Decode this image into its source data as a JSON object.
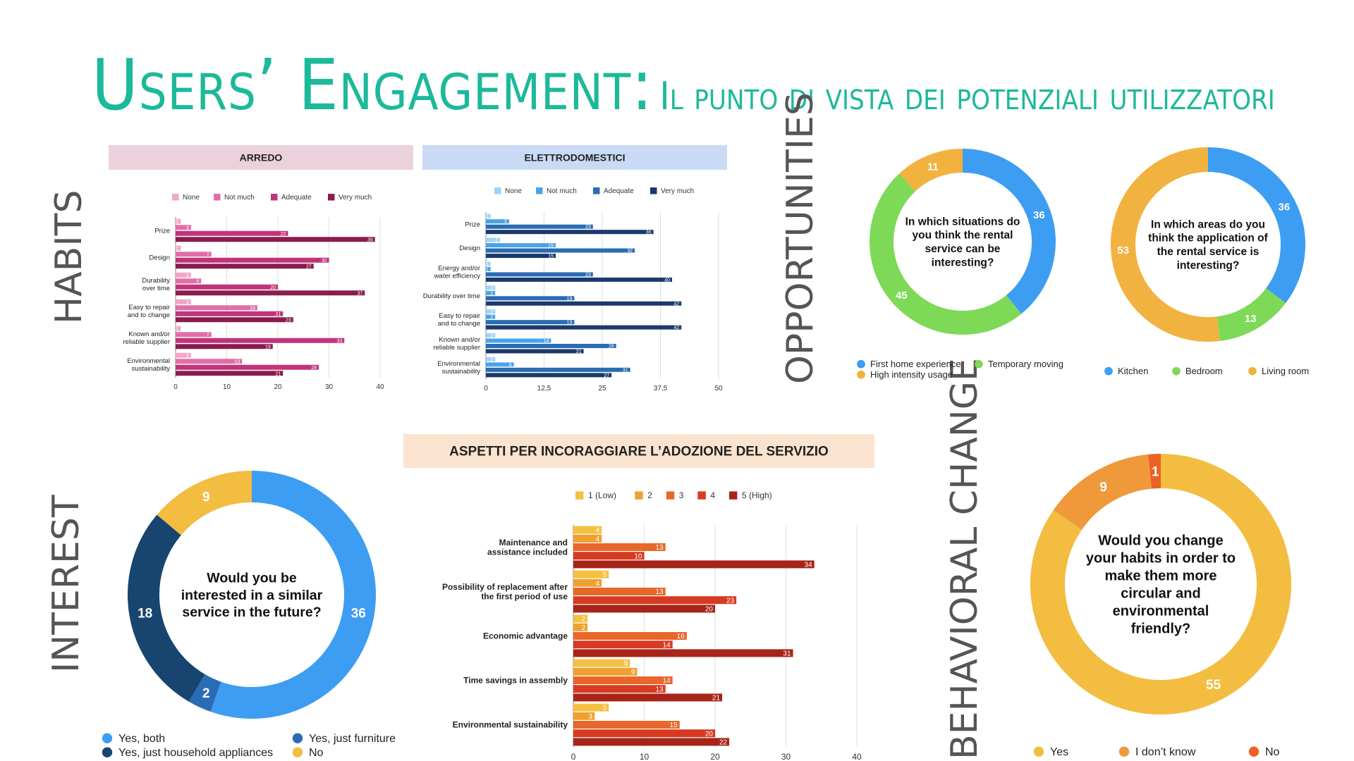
{
  "header": {
    "title_main": "Users’ Engagement:",
    "title_sub": "Il punto di vista dei potenziali utilizzatori"
  },
  "sections": {
    "habits": "HABITS",
    "opportunities": "OPPORTUNITIES",
    "interest": "INTEREST",
    "behavioral": "BEHAVIORAL CHANGE"
  },
  "chart_data": [
    {
      "id": "arredo",
      "type": "bar",
      "orientation": "horizontal",
      "title": "ARREDO",
      "title_bg": "#ebd1dc",
      "categories": [
        "Prize",
        "Design",
        "Durability over time",
        "Easy to repair and to change",
        "Known and/or reliable supplier",
        "Environmental sustainability"
      ],
      "category_lines": [
        [
          "Prize"
        ],
        [
          "Design"
        ],
        [
          "Durability",
          "over time"
        ],
        [
          "Easy to repair",
          "and to change"
        ],
        [
          "Known and/or",
          "reliable supplier"
        ],
        [
          "Environmental",
          "sustainability"
        ]
      ],
      "series": [
        {
          "name": "None",
          "color": "#f2a6c8",
          "values": [
            1,
            1,
            3,
            3,
            1,
            3
          ]
        },
        {
          "name": "Not much",
          "color": "#e06fa6",
          "values": [
            3,
            7,
            5,
            16,
            7,
            13
          ]
        },
        {
          "name": "Adequate",
          "color": "#c2337a",
          "values": [
            22,
            30,
            20,
            21,
            33,
            28
          ]
        },
        {
          "name": "Very much",
          "color": "#8a1c4e",
          "values": [
            39,
            27,
            37,
            23,
            19,
            21
          ]
        }
      ],
      "xlim": [
        0,
        40
      ],
      "xticks": [
        "0",
        "10",
        "20",
        "30",
        "40"
      ],
      "xtick_values": [
        0,
        10,
        20,
        30,
        40
      ],
      "grid": true,
      "legend": "top"
    },
    {
      "id": "elettrodomestici",
      "type": "bar",
      "orientation": "horizontal",
      "title": "ELETTRODOMESTICI",
      "title_bg": "#c9daf6",
      "categories": [
        "Prize",
        "Design",
        "Energy and/or water efficiency",
        "Durability over time",
        "Easy to repair and to change",
        "Known and/or reliable supplier",
        "Environmental sustainability"
      ],
      "category_lines": [
        [
          "Prize"
        ],
        [
          "Design"
        ],
        [
          "Energy and/or",
          "water efficiency"
        ],
        [
          "Durability over time"
        ],
        [
          "Easy to repair",
          "and to change"
        ],
        [
          "Known and/or",
          "reliable supplier"
        ],
        [
          "Environmental",
          "sustainability"
        ]
      ],
      "series": [
        {
          "name": "None",
          "color": "#9fd2f5",
          "values": [
            1,
            3,
            1,
            2,
            2,
            2,
            2
          ]
        },
        {
          "name": "Not much",
          "color": "#4aa3e8",
          "values": [
            5,
            15,
            1,
            2,
            2,
            14,
            6
          ]
        },
        {
          "name": "Adequate",
          "color": "#2a6cb4",
          "values": [
            23,
            32,
            23,
            19,
            19,
            28,
            31
          ]
        },
        {
          "name": "Very much",
          "color": "#1a3a6b",
          "values": [
            36,
            15,
            40,
            42,
            42,
            21,
            27
          ]
        }
      ],
      "xlim": [
        0,
        50
      ],
      "xticks": [
        "0",
        "12,5",
        "25",
        "37,5",
        "50"
      ],
      "xtick_values": [
        0,
        12.5,
        25,
        37.5,
        50
      ],
      "grid": true,
      "legend": "top"
    },
    {
      "id": "situations",
      "type": "pie",
      "donut": true,
      "question": "In which situations do you think the rental service can be interesting?",
      "question_lines": [
        "In which situations do",
        "you think the rental",
        "service can be",
        "interesting?"
      ],
      "slices": [
        {
          "name": "First home experience",
          "value": 36,
          "color": "#3d9df2"
        },
        {
          "name": "Temporary moving",
          "value": 45,
          "color": "#7ed957"
        },
        {
          "name": "High intensity usage",
          "value": 11,
          "color": "#f2b240"
        }
      ],
      "legend": "bottom"
    },
    {
      "id": "areas",
      "type": "pie",
      "donut": true,
      "question": "In which areas do you think the application of the rental service is interesting?",
      "question_lines": [
        "In which areas do you",
        "think the application of",
        "the rental service is",
        "interesting?"
      ],
      "slices": [
        {
          "name": "Kitchen",
          "value": 36,
          "color": "#3d9df2"
        },
        {
          "name": "Bedroom",
          "value": 13,
          "color": "#7ed957"
        },
        {
          "name": "Living room",
          "value": 53,
          "color": "#f2b240"
        }
      ],
      "legend": "bottom"
    },
    {
      "id": "interest",
      "type": "pie",
      "donut": true,
      "question": "Would you be interested in a similar service in the future?",
      "question_lines": [
        "Would you be",
        "interested in a similar",
        "service in the future?"
      ],
      "slices": [
        {
          "name": "Yes, both",
          "value": 36,
          "color": "#3d9df2"
        },
        {
          "name": "Yes, just furniture",
          "value": 2,
          "color": "#2a6cb4"
        },
        {
          "name": "Yes, just household appliances",
          "value": 18,
          "color": "#17456f"
        },
        {
          "name": "No",
          "value": 9,
          "color": "#f2bd40"
        }
      ],
      "legend": "bottom"
    },
    {
      "id": "aspetti",
      "type": "bar",
      "orientation": "horizontal",
      "title": "ASPETTI PER INCORAGGIARE L’ADOZIONE DEL SERVIZIO",
      "title_bg": "#fbe4cf",
      "categories": [
        "Maintenance and assistance included",
        "Possibility of replacement after the first period of use",
        "Economic advantage",
        "Time savings in assembly",
        "Environmental sustainability"
      ],
      "category_lines": [
        [
          "Maintenance and",
          "assistance included"
        ],
        [
          "Possibility of replacement after",
          "the first period of use"
        ],
        [
          "Economic advantage"
        ],
        [
          "Time savings in assembly"
        ],
        [
          "Environmental sustainability"
        ]
      ],
      "series": [
        {
          "name": "1 (Low)",
          "color": "#f5c042",
          "values": [
            4,
            5,
            2,
            8,
            5
          ]
        },
        {
          "name": "2",
          "color": "#f0a030",
          "values": [
            4,
            4,
            2,
            9,
            3
          ]
        },
        {
          "name": "3",
          "color": "#e8672a",
          "values": [
            13,
            13,
            16,
            14,
            15
          ]
        },
        {
          "name": "4",
          "color": "#d63b22",
          "values": [
            10,
            23,
            14,
            13,
            20
          ]
        },
        {
          "name": "5 (High)",
          "color": "#a82418",
          "values": [
            34,
            20,
            31,
            21,
            22
          ]
        }
      ],
      "xlim": [
        0,
        40
      ],
      "xticks": [
        "0",
        "10",
        "20",
        "30",
        "40"
      ],
      "xtick_values": [
        0,
        10,
        20,
        30,
        40
      ],
      "grid": true,
      "legend": "top"
    },
    {
      "id": "behavior",
      "type": "pie",
      "donut": true,
      "question": "Would you change your habits in order to make them more circular and environmental friendly?",
      "question_lines": [
        "Would you change",
        "your habits in order to",
        "make them more",
        "circular and",
        "environmental",
        "friendly?"
      ],
      "slices": [
        {
          "name": "Yes",
          "value": 55,
          "color": "#f2bd40"
        },
        {
          "name": "I don’t know",
          "value": 9,
          "color": "#f0993a"
        },
        {
          "name": "No",
          "value": 1,
          "color": "#ec6126"
        }
      ],
      "legend": "bottom"
    }
  ]
}
